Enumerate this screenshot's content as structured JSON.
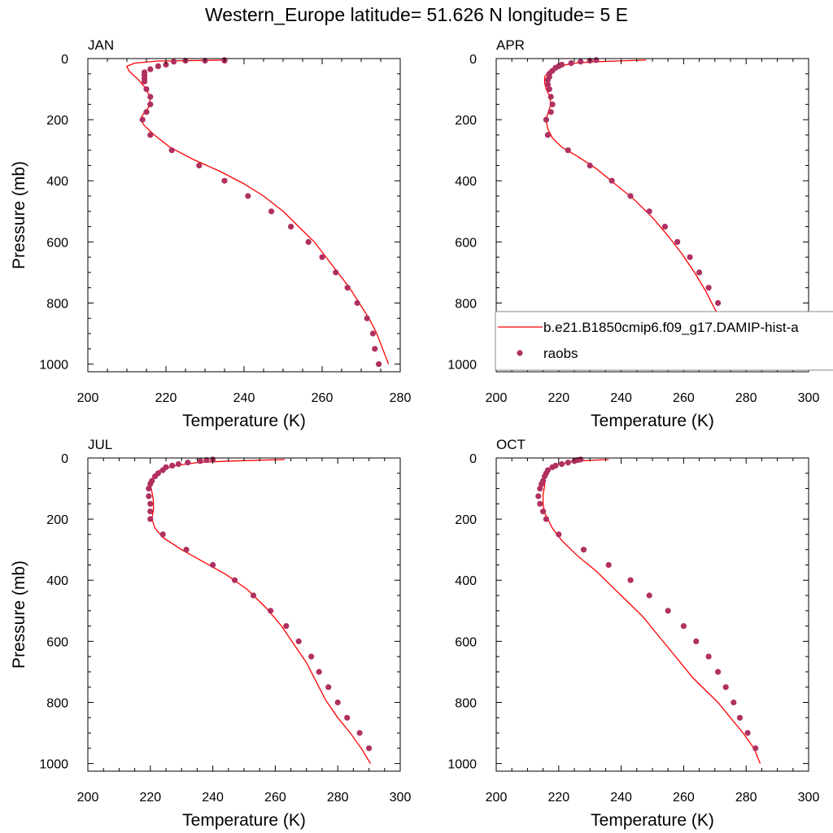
{
  "title": "Western_Europe  latitude= 51.626 N longitude= 5 E",
  "colors": {
    "model": "#ff0000",
    "obs": "#b03060",
    "frame": "#000000"
  },
  "legend": {
    "model_label": "b.e21.B1850cmip6.f09_g17.DAMIP-hist-a",
    "obs_label": "raobs"
  },
  "chart_data": [
    {
      "type": "line",
      "panel": "JAN",
      "xlabel": "Temperature (K)",
      "ylabel": "Pressure (mb)",
      "xlim": [
        200,
        280
      ],
      "ylim": [
        1025,
        0
      ],
      "xticks": [
        "200",
        "220",
        "240",
        "260",
        "280"
      ],
      "yticks": [
        "0",
        "200",
        "400",
        "600",
        "800",
        "1000"
      ],
      "series": [
        {
          "kind": "line",
          "points": [
            [
              235,
              5
            ],
            [
              218,
              8
            ],
            [
              212,
              15
            ],
            [
              210,
              25
            ],
            [
              210.5,
              40
            ],
            [
              213,
              70
            ],
            [
              215,
              100
            ],
            [
              216,
              130
            ],
            [
              215.5,
              160
            ],
            [
              214,
              185
            ],
            [
              213.5,
              200
            ],
            [
              214.5,
              220
            ],
            [
              217,
              250
            ],
            [
              221,
              290
            ],
            [
              227,
              330
            ],
            [
              234,
              370
            ],
            [
              240,
              410
            ],
            [
              245,
              450
            ],
            [
              250,
              500
            ],
            [
              254,
              550
            ],
            [
              258,
              600
            ],
            [
              261,
              650
            ],
            [
              264,
              700
            ],
            [
              267,
              750
            ],
            [
              269.5,
              800
            ],
            [
              272,
              850
            ],
            [
              274,
              900
            ],
            [
              275.5,
              950
            ],
            [
              277,
              1000
            ]
          ]
        },
        {
          "kind": "scatter",
          "points": [
            [
              235,
              5
            ],
            [
              235,
              7
            ],
            [
              230,
              7
            ],
            [
              225,
              7
            ],
            [
              222,
              10
            ],
            [
              220,
              20
            ],
            [
              218,
              25
            ],
            [
              216,
              35
            ],
            [
              214.5,
              45
            ],
            [
              214.5,
              55
            ],
            [
              214.5,
              65
            ],
            [
              214.5,
              75
            ],
            [
              215,
              100
            ],
            [
              216,
              125
            ],
            [
              216,
              150
            ],
            [
              215,
              175
            ],
            [
              214,
              200
            ],
            [
              216,
              250
            ],
            [
              221.5,
              300
            ],
            [
              228.5,
              350
            ],
            [
              235,
              400
            ],
            [
              241,
              450
            ],
            [
              247,
              500
            ],
            [
              252,
              550
            ],
            [
              256.5,
              600
            ],
            [
              260,
              650
            ],
            [
              263.5,
              700
            ],
            [
              266.5,
              750
            ],
            [
              269,
              800
            ],
            [
              271.5,
              850
            ],
            [
              273,
              900
            ],
            [
              273.5,
              950
            ],
            [
              274.5,
              1000
            ]
          ]
        }
      ]
    },
    {
      "type": "line",
      "panel": "APR",
      "xlabel": "Temperature (K)",
      "ylabel": "",
      "xlim": [
        200,
        300
      ],
      "ylim": [
        1025,
        0
      ],
      "xticks": [
        "200",
        "220",
        "240",
        "260",
        "280",
        "300"
      ],
      "yticks": [
        "0",
        "200",
        "400",
        "600",
        "800",
        "1000"
      ],
      "series": [
        {
          "kind": "line",
          "points": [
            [
              248,
              5
            ],
            [
              232,
              10
            ],
            [
              225,
              15
            ],
            [
              220,
              25
            ],
            [
              217,
              40
            ],
            [
              215.5,
              60
            ],
            [
              215.5,
              80
            ],
            [
              216,
              100
            ],
            [
              217,
              120
            ],
            [
              217.5,
              150
            ],
            [
              216.5,
              180
            ],
            [
              216,
              200
            ],
            [
              216.5,
              230
            ],
            [
              218,
              260
            ],
            [
              221,
              290
            ],
            [
              226,
              320
            ],
            [
              232,
              360
            ],
            [
              238,
              410
            ],
            [
              244,
              460
            ],
            [
              250,
              520
            ],
            [
              255,
              580
            ],
            [
              259.5,
              640
            ],
            [
              263.5,
              700
            ],
            [
              267,
              760
            ],
            [
              270,
              820
            ],
            [
              273.5,
              870
            ],
            [
              277,
              910
            ],
            [
              280,
              950
            ],
            [
              282,
              1000
            ]
          ]
        },
        {
          "kind": "scatter",
          "points": [
            [
              232,
              5
            ],
            [
              230,
              7
            ],
            [
              227,
              10
            ],
            [
              224,
              15
            ],
            [
              221,
              20
            ],
            [
              220,
              25
            ],
            [
              219,
              30
            ],
            [
              218,
              40
            ],
            [
              217,
              50
            ],
            [
              217,
              60
            ],
            [
              216.5,
              70
            ],
            [
              216.5,
              85
            ],
            [
              217,
              100
            ],
            [
              217.5,
              125
            ],
            [
              218,
              150
            ],
            [
              217.5,
              175
            ],
            [
              216,
              200
            ],
            [
              216.5,
              250
            ],
            [
              223,
              300
            ],
            [
              230,
              350
            ],
            [
              237,
              400
            ],
            [
              243,
              450
            ],
            [
              249,
              500
            ],
            [
              254,
              550
            ],
            [
              258,
              600
            ],
            [
              262,
              650
            ],
            [
              265,
              700
            ],
            [
              268,
              750
            ],
            [
              271,
              800
            ],
            [
              273.5,
              850
            ],
            [
              277,
              900
            ],
            [
              280.5,
              950
            ]
          ]
        }
      ]
    },
    {
      "type": "line",
      "panel": "JUL",
      "xlabel": "Temperature (K)",
      "ylabel": "Pressure (mb)",
      "xlim": [
        200,
        300
      ],
      "ylim": [
        1025,
        0
      ],
      "xticks": [
        "200",
        "220",
        "240",
        "260",
        "280",
        "300"
      ],
      "yticks": [
        "0",
        "200",
        "400",
        "600",
        "800",
        "1000"
      ],
      "series": [
        {
          "kind": "line",
          "points": [
            [
              263,
              5
            ],
            [
              245,
              10
            ],
            [
              235,
              15
            ],
            [
              228,
              25
            ],
            [
              223,
              40
            ],
            [
              221,
              60
            ],
            [
              220,
              85
            ],
            [
              220.5,
              110
            ],
            [
              221,
              140
            ],
            [
              221,
              170
            ],
            [
              220.5,
              200
            ],
            [
              221.5,
              230
            ],
            [
              224,
              260
            ],
            [
              230,
              300
            ],
            [
              237,
              340
            ],
            [
              244,
              380
            ],
            [
              251,
              430
            ],
            [
              257,
              490
            ],
            [
              262,
              550
            ],
            [
              266,
              610
            ],
            [
              270,
              670
            ],
            [
              273,
              730
            ],
            [
              276,
              790
            ],
            [
              280,
              850
            ],
            [
              284,
              900
            ],
            [
              287.5,
              950
            ],
            [
              290.5,
              1000
            ]
          ]
        },
        {
          "kind": "scatter",
          "points": [
            [
              240,
              5
            ],
            [
              238,
              7
            ],
            [
              236,
              10
            ],
            [
              232,
              15
            ],
            [
              229,
              20
            ],
            [
              227,
              25
            ],
            [
              225,
              30
            ],
            [
              224,
              40
            ],
            [
              222.5,
              50
            ],
            [
              221.5,
              60
            ],
            [
              220.5,
              75
            ],
            [
              220,
              85
            ],
            [
              219.5,
              100
            ],
            [
              219.5,
              125
            ],
            [
              220,
              150
            ],
            [
              220,
              175
            ],
            [
              220,
              200
            ],
            [
              224,
              250
            ],
            [
              231.5,
              300
            ],
            [
              240,
              350
            ],
            [
              247,
              400
            ],
            [
              253,
              450
            ],
            [
              258.5,
              500
            ],
            [
              263.5,
              550
            ],
            [
              267.5,
              600
            ],
            [
              271.5,
              650
            ],
            [
              274,
              700
            ],
            [
              277,
              750
            ],
            [
              280,
              800
            ],
            [
              283,
              850
            ],
            [
              287,
              900
            ],
            [
              290,
              950
            ]
          ]
        }
      ]
    },
    {
      "type": "line",
      "panel": "OCT",
      "xlabel": "Temperature (K)",
      "ylabel": "",
      "xlim": [
        200,
        300
      ],
      "ylim": [
        1025,
        0
      ],
      "xticks": [
        "200",
        "220",
        "240",
        "260",
        "280",
        "300"
      ],
      "yticks": [
        "0",
        "200",
        "400",
        "600",
        "800",
        "1000"
      ],
      "series": [
        {
          "kind": "line",
          "points": [
            [
              236,
              5
            ],
            [
              225,
              10
            ],
            [
              220,
              20
            ],
            [
              217,
              35
            ],
            [
              215.5,
              60
            ],
            [
              215.5,
              90
            ],
            [
              215,
              120
            ],
            [
              215,
              150
            ],
            [
              215.5,
              180
            ],
            [
              216.5,
              200
            ],
            [
              218,
              230
            ],
            [
              221,
              270
            ],
            [
              226,
              320
            ],
            [
              232,
              370
            ],
            [
              237,
              420
            ],
            [
              242,
              470
            ],
            [
              247,
              520
            ],
            [
              251,
              570
            ],
            [
              255,
              620
            ],
            [
              259,
              670
            ],
            [
              263,
              720
            ],
            [
              267,
              760
            ],
            [
              271,
              800
            ],
            [
              275,
              850
            ],
            [
              279,
              900
            ],
            [
              282.5,
              950
            ],
            [
              284.5,
              1000
            ]
          ]
        },
        {
          "kind": "scatter",
          "points": [
            [
              227,
              5
            ],
            [
              226,
              7
            ],
            [
              225,
              10
            ],
            [
              223,
              15
            ],
            [
              221,
              20
            ],
            [
              219,
              25
            ],
            [
              218,
              30
            ],
            [
              216.5,
              40
            ],
            [
              216,
              50
            ],
            [
              215.5,
              60
            ],
            [
              215,
              75
            ],
            [
              214.5,
              85
            ],
            [
              214,
              100
            ],
            [
              213.5,
              125
            ],
            [
              214,
              150
            ],
            [
              215,
              175
            ],
            [
              216,
              200
            ],
            [
              220,
              250
            ],
            [
              228,
              300
            ],
            [
              236,
              350
            ],
            [
              243,
              400
            ],
            [
              249,
              450
            ],
            [
              255,
              500
            ],
            [
              260,
              550
            ],
            [
              264,
              600
            ],
            [
              268,
              650
            ],
            [
              271,
              700
            ],
            [
              273.5,
              750
            ],
            [
              276,
              800
            ],
            [
              278,
              850
            ],
            [
              280.5,
              900
            ],
            [
              283,
              950
            ]
          ]
        }
      ]
    }
  ]
}
